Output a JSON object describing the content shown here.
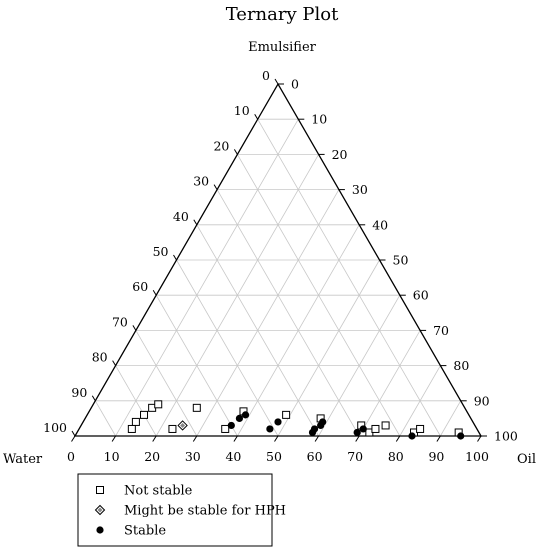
{
  "chart_data": {
    "type": "scatter",
    "subtype": "ternary",
    "title": "Ternary Plot",
    "vertex_labels": {
      "top": "Emulsifier",
      "left": "Water",
      "right": "Oil"
    },
    "ticks": {
      "bottom": [
        "0",
        "10",
        "20",
        "30",
        "40",
        "50",
        "60",
        "70",
        "80",
        "90",
        "100"
      ],
      "left": [
        "0",
        "10",
        "20",
        "30",
        "40",
        "50",
        "60",
        "70",
        "80",
        "90",
        "100"
      ],
      "right": [
        "0",
        "10",
        "20",
        "30",
        "40",
        "50",
        "60",
        "70",
        "80",
        "90",
        "100"
      ]
    },
    "grid": true,
    "grid_step": 10,
    "legend_placement": "bottom-left",
    "series": [
      {
        "name": "Not stable",
        "marker": "open-square",
        "points": [
          {
            "oil": 13,
            "emulsifier": 2
          },
          {
            "oil": 13,
            "emulsifier": 4
          },
          {
            "oil": 14,
            "emulsifier": 6
          },
          {
            "oil": 15,
            "emulsifier": 8
          },
          {
            "oil": 16,
            "emulsifier": 9
          },
          {
            "oil": 23,
            "emulsifier": 2
          },
          {
            "oil": 26,
            "emulsifier": 8
          },
          {
            "oil": 36,
            "emulsifier": 2
          },
          {
            "oil": 38,
            "emulsifier": 7
          },
          {
            "oil": 49,
            "emulsifier": 6
          },
          {
            "oil": 58,
            "emulsifier": 5
          },
          {
            "oil": 69,
            "emulsifier": 3
          },
          {
            "oil": 72,
            "emulsifier": 1
          },
          {
            "oil": 73,
            "emulsifier": 2
          },
          {
            "oil": 75,
            "emulsifier": 3
          },
          {
            "oil": 83,
            "emulsifier": 1
          },
          {
            "oil": 84,
            "emulsifier": 2
          },
          {
            "oil": 94,
            "emulsifier": 1
          }
        ]
      },
      {
        "name": "Might be stable for HPH",
        "marker": "open-diamond",
        "points": [
          {
            "oil": 25,
            "emulsifier": 3
          }
        ]
      },
      {
        "name": "Stable",
        "marker": "filled-circle",
        "points": [
          {
            "oil": 37,
            "emulsifier": 3
          },
          {
            "oil": 38,
            "emulsifier": 5
          },
          {
            "oil": 39,
            "emulsifier": 6
          },
          {
            "oil": 47,
            "emulsifier": 2
          },
          {
            "oil": 48,
            "emulsifier": 4
          },
          {
            "oil": 58,
            "emulsifier": 1
          },
          {
            "oil": 58,
            "emulsifier": 2
          },
          {
            "oil": 59,
            "emulsifier": 3
          },
          {
            "oil": 59,
            "emulsifier": 4
          },
          {
            "oil": 69,
            "emulsifier": 1
          },
          {
            "oil": 70,
            "emulsifier": 2
          },
          {
            "oil": 83,
            "emulsifier": 0
          },
          {
            "oil": 95,
            "emulsifier": 0
          }
        ]
      }
    ]
  }
}
